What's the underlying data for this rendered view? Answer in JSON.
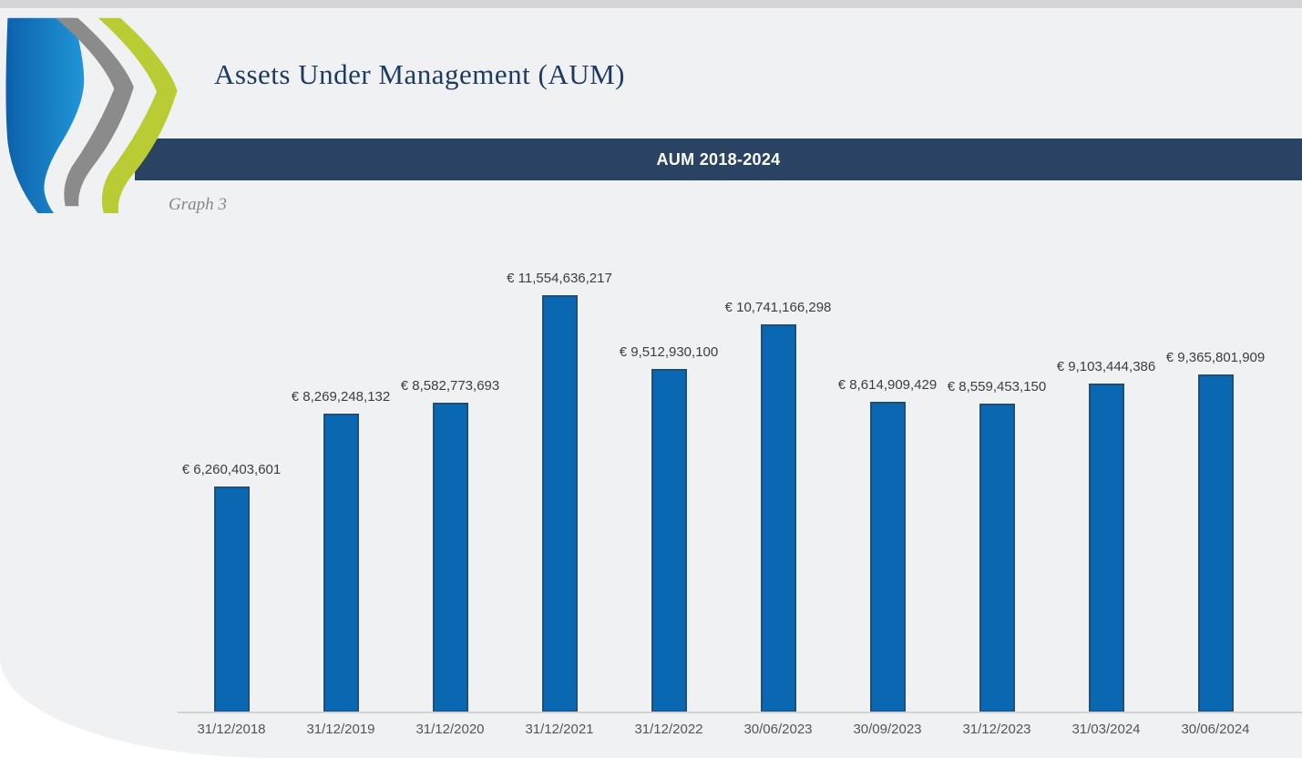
{
  "header": {
    "title": "Assets Under Management (AUM)",
    "logo": {
      "blue": "#0c61ab",
      "blue_light": "#2196d8",
      "gray": "#8b8b8b",
      "green": "#b9cc34"
    }
  },
  "section_bar": {
    "label": "AUM 2018-2024",
    "background": "#2a4363",
    "text_color": "#ffffff"
  },
  "caption": "Graph 3",
  "chart_data": {
    "type": "bar",
    "title": "AUM 2018-2024",
    "currency": "EUR",
    "categories": [
      "31/12/2018",
      "31/12/2019",
      "31/12/2020",
      "31/12/2021",
      "31/12/2022",
      "30/06/2023",
      "30/09/2023",
      "31/12/2023",
      "31/03/2024",
      "30/06/2024"
    ],
    "values": [
      6260403601,
      8269248132,
      8582773693,
      11554636217,
      9512930100,
      10741166298,
      8614909429,
      8559453150,
      9103444386,
      9365801909
    ],
    "value_labels": [
      "€ 6,260,403,601",
      "€ 8,269,248,132",
      "€ 8,582,773,693",
      "€ 11,554,636,217",
      "€ 9,512,930,100",
      "€ 10,741,166,298",
      "€ 8,614,909,429",
      "€ 8,559,453,150",
      "€ 9,103,444,386",
      "€ 9,365,801,909"
    ],
    "ylim": [
      0,
      11554636217
    ],
    "grid": false,
    "legend": "none",
    "data_labels": "outside-end",
    "bar_color": "#0a68b2",
    "bar_border_color": "#1f4e79",
    "axis_line_color": "#d2d2d2",
    "label_color": "#3d3d3d",
    "tick_color": "#555555"
  }
}
